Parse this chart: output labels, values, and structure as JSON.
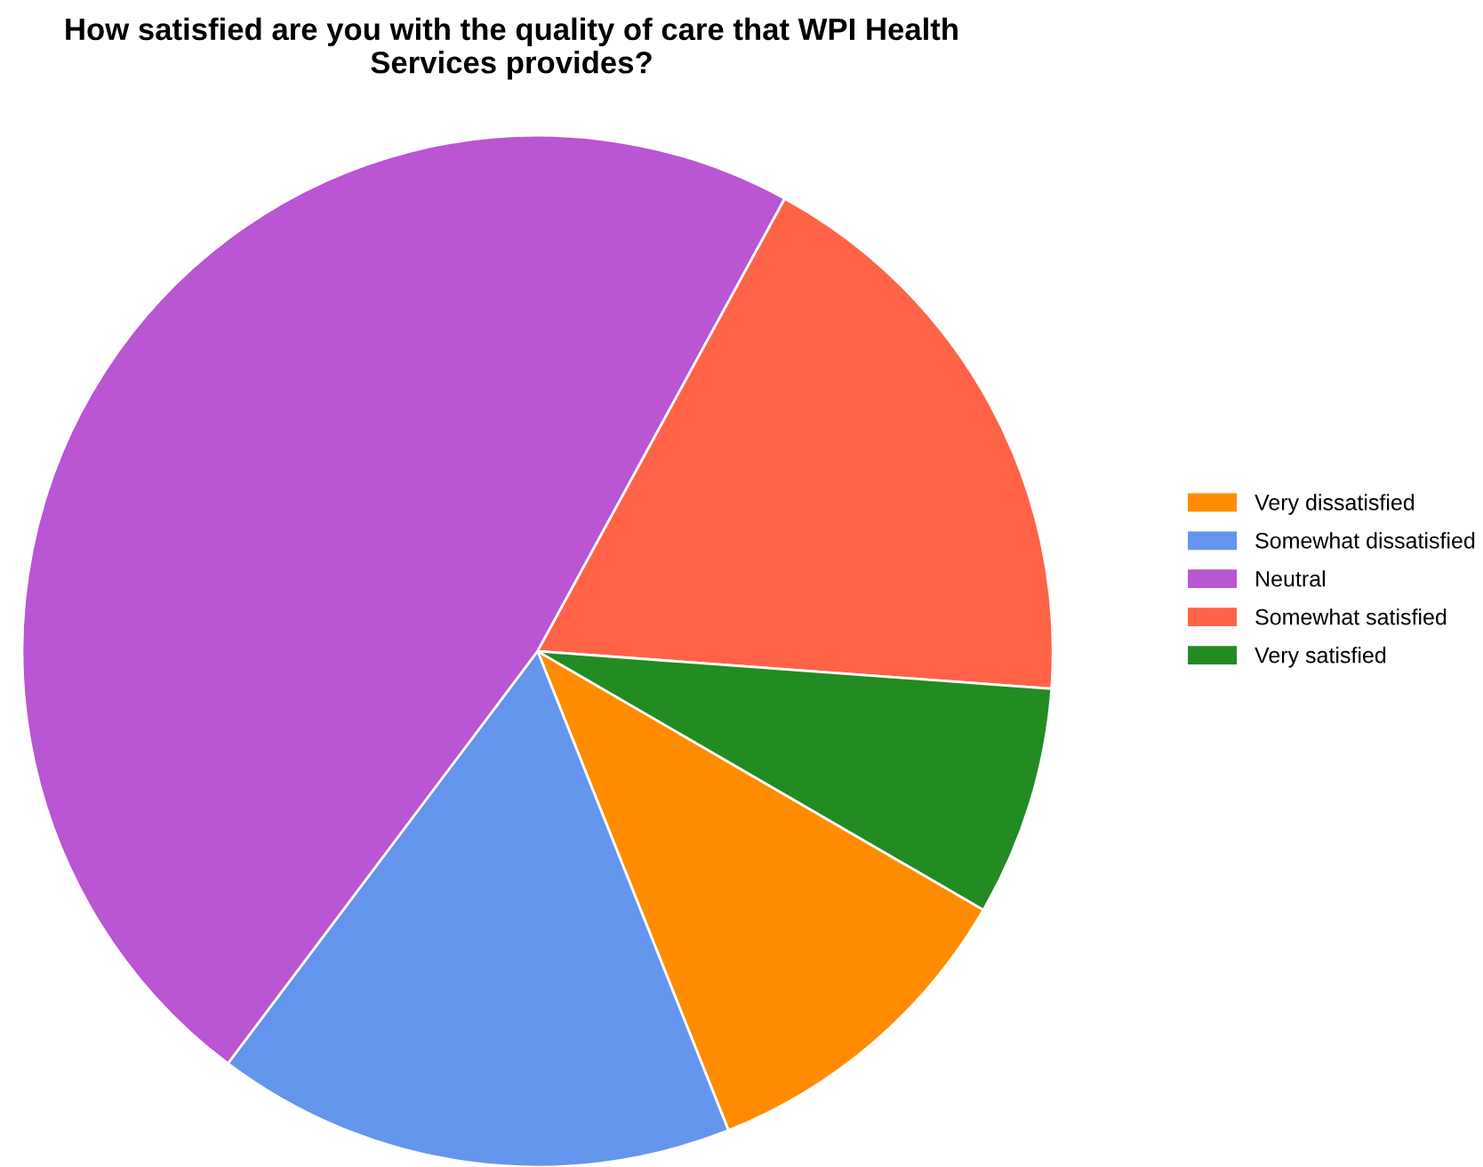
{
  "chart_data": {
    "type": "pie",
    "title": "How satisfied are you with the quality of care that WPI Health\nServices provides?",
    "categories": [
      "Very dissatisfied",
      "Somewhat dissatisfied",
      "Neutral",
      "Somewhat satisfied",
      "Very satisfied"
    ],
    "values": [
      10.6,
      16.3,
      47.7,
      18.2,
      7.2
    ],
    "colors": [
      "#ff8c00",
      "#6495ed",
      "#ba55d3",
      "#ff6347",
      "#228b22"
    ],
    "legend": "right"
  }
}
